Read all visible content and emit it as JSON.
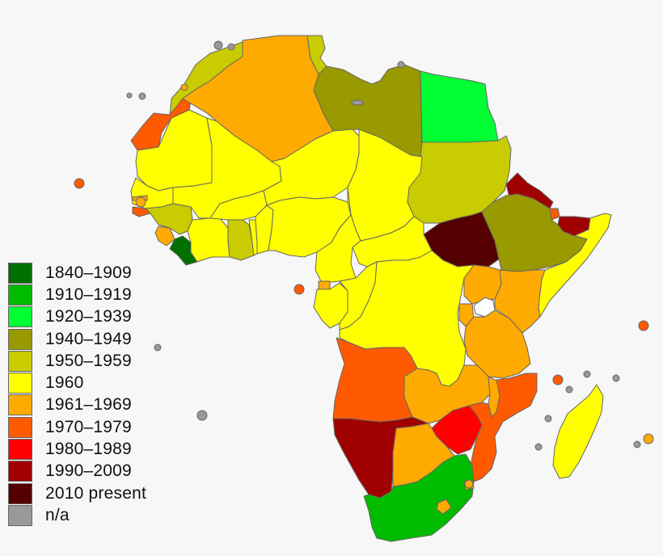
{
  "legend": {
    "entries": [
      {
        "label": "1840–1909",
        "color": "#007000"
      },
      {
        "label": "1910–1919",
        "color": "#00bb00"
      },
      {
        "label": "1920–1939",
        "color": "#00ff33"
      },
      {
        "label": "1940–1949",
        "color": "#999900"
      },
      {
        "label": "1950–1959",
        "color": "#c8cc00"
      },
      {
        "label": "1960",
        "color": "#ffff00"
      },
      {
        "label": "1961–1969",
        "color": "#ffaa00"
      },
      {
        "label": "1970–1979",
        "color": "#ff5a00"
      },
      {
        "label": "1980–1989",
        "color": "#ff0000"
      },
      {
        "label": "1990–2009",
        "color": "#a10000"
      },
      {
        "label": "2010 present",
        "color": "#550000"
      },
      {
        "label": "n/a",
        "color": "#999999"
      }
    ]
  },
  "colors": {
    "background": "#f7f7f7",
    "border": "#666666",
    "south_africa": "#00bb00",
    "liberia": "#007000",
    "egypt": "#00ff33",
    "libya": "#999900",
    "ethiopia": "#999900",
    "south_sudan": "#550000"
  }
}
